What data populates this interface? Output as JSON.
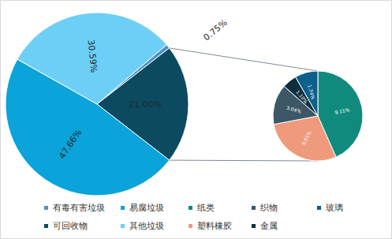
{
  "chart_data": {
    "type": "pie-of-pie",
    "legend": "bottom",
    "data_labels": true,
    "categories": [
      "有毒有害垃圾",
      "可回收物",
      "易腐垃圾",
      "其他垃圾"
    ],
    "values": [
      0.75,
      21.0,
      47.66,
      30.59
    ],
    "value_labels": [
      "0.75%",
      "21.00%",
      "47.66%",
      "30.59%"
    ],
    "colors": [
      "#4d93c5",
      "#0c4a5f",
      "#0aa3da",
      "#6dcff6"
    ],
    "breakdown": {
      "of": "可回收物",
      "categories": [
        "纸类",
        "塑料橡胶",
        "织物",
        "金属",
        "玻璃"
      ],
      "values": [
        9.11,
        6.01,
        3.04,
        1.1,
        1.74
      ],
      "value_labels": [
        "9.11%",
        "6.01%",
        "3.04%",
        "1.10%",
        "1.74%"
      ],
      "colors": [
        "#118a7e",
        "#ef9a7c",
        "#3c5866",
        "#0f2f3d",
        "#0d5f8c"
      ]
    }
  }
}
